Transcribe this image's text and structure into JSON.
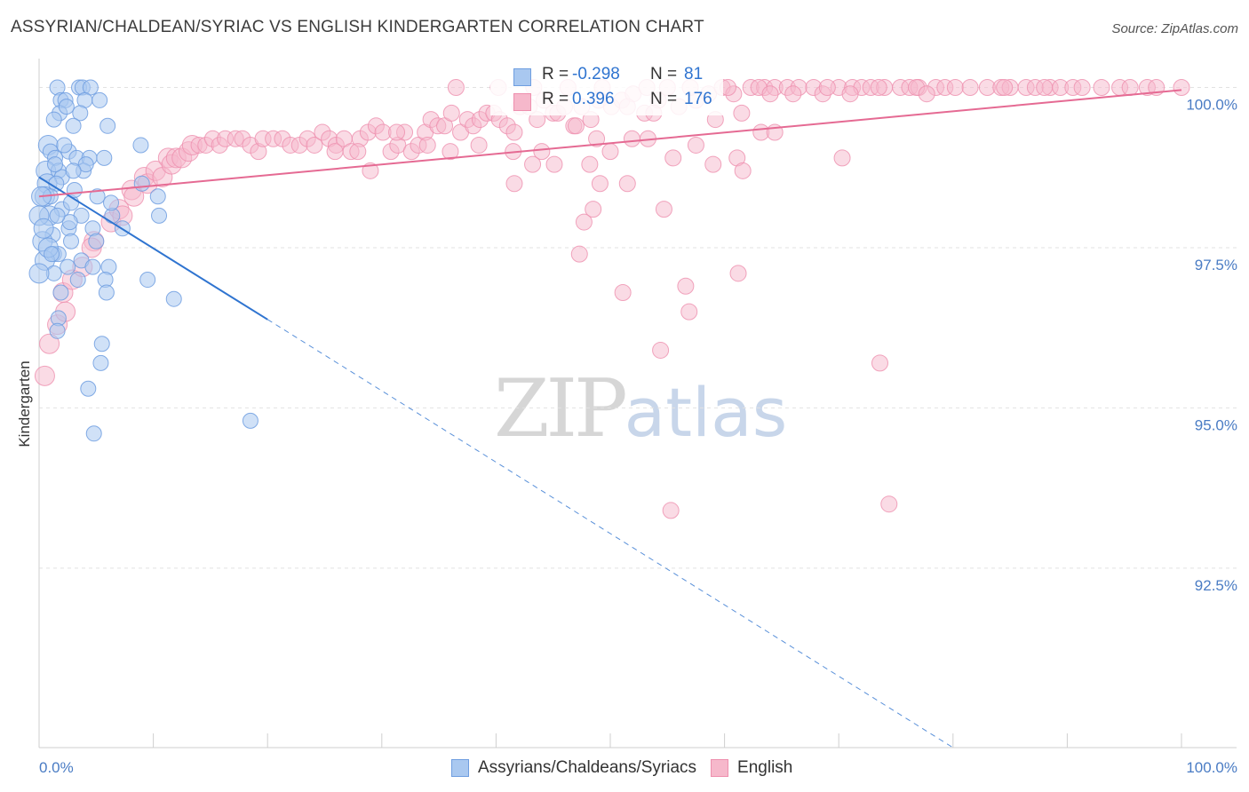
{
  "header": {
    "title": "ASSYRIAN/CHALDEAN/SYRIAC VS ENGLISH KINDERGARTEN CORRELATION CHART",
    "source": "Source: ZipAtlas.com"
  },
  "watermark": {
    "zip": "ZIP",
    "atlas": "atlas"
  },
  "stats": [
    {
      "r_label": "R =",
      "r_value": "-0.298",
      "n_label": "N =",
      "n_value": "81"
    },
    {
      "r_label": "R =",
      "r_value": "0.396",
      "n_label": "N =",
      "n_value": "176"
    }
  ],
  "legend": [
    {
      "label": "Assyrians/Chaldeans/Syriacs"
    },
    {
      "label": "English"
    }
  ],
  "colors": {
    "blue_fill": "#a9c8f0",
    "blue_stroke": "#6f9ee0",
    "blue_line": "#2f74d0",
    "pink_fill": "#f6b8cb",
    "pink_stroke": "#ee8fae",
    "pink_line": "#e56a93",
    "tick_text": "#4a7cc4",
    "grid": "#e2e2e2"
  },
  "chart_data": {
    "type": "scatter",
    "title": "ASSYRIAN/CHALDEAN/SYRIAC VS ENGLISH KINDERGARTEN CORRELATION CHART",
    "xlabel": "",
    "ylabel": "Kindergarten",
    "xlim": [
      0,
      100
    ],
    "ylim": [
      89.7,
      100.45
    ],
    "x_tick_labels": [
      "0.0%",
      "100.0%"
    ],
    "y_ticks": [
      {
        "value": 100.0,
        "label": "100.0%"
      },
      {
        "value": 97.5,
        "label": "97.5%"
      },
      {
        "value": 95.0,
        "label": "95.0%"
      },
      {
        "value": 92.5,
        "label": "92.5%"
      }
    ],
    "series": [
      {
        "name": "Assyrians/Chaldeans/Syriacs",
        "color": "blue",
        "r": -0.298,
        "n": 81,
        "trend": {
          "x0": 0,
          "y0": 98.6,
          "x1": 20,
          "y1": 96.38,
          "dash_to_x": 80,
          "dash_to_y": 89.7
        },
        "points": [
          [
            1.6,
            100.0
          ],
          [
            3.5,
            100.0
          ],
          [
            3.8,
            100.0
          ],
          [
            4.5,
            100.0
          ],
          [
            1.9,
            99.8
          ],
          [
            2.3,
            99.8
          ],
          [
            4.0,
            99.8
          ],
          [
            5.3,
            99.8
          ],
          [
            1.8,
            99.6
          ],
          [
            3.6,
            99.6
          ],
          [
            1.3,
            99.5
          ],
          [
            3.0,
            99.4
          ],
          [
            6.0,
            99.4
          ],
          [
            0.8,
            99.1
          ],
          [
            1.0,
            99.0
          ],
          [
            2.6,
            99.0
          ],
          [
            3.3,
            98.9
          ],
          [
            4.4,
            98.9
          ],
          [
            5.7,
            98.9
          ],
          [
            8.9,
            99.1
          ],
          [
            1.4,
            98.9
          ],
          [
            0.6,
            98.7
          ],
          [
            1.7,
            98.7
          ],
          [
            2.0,
            98.6
          ],
          [
            3.9,
            98.7
          ],
          [
            0.7,
            98.5
          ],
          [
            1.5,
            98.5
          ],
          [
            9.0,
            98.5
          ],
          [
            5.1,
            98.3
          ],
          [
            0.5,
            98.3
          ],
          [
            1.0,
            98.3
          ],
          [
            0.2,
            98.3
          ],
          [
            10.4,
            98.3
          ],
          [
            2.0,
            98.1
          ],
          [
            2.8,
            98.2
          ],
          [
            0.9,
            98.0
          ],
          [
            6.4,
            98.0
          ],
          [
            3.7,
            98.0
          ],
          [
            10.5,
            98.0
          ],
          [
            0.0,
            98.0
          ],
          [
            2.6,
            97.8
          ],
          [
            1.2,
            97.7
          ],
          [
            4.7,
            97.8
          ],
          [
            7.3,
            97.8
          ],
          [
            0.3,
            97.6
          ],
          [
            2.8,
            97.6
          ],
          [
            1.3,
            97.4
          ],
          [
            1.7,
            97.4
          ],
          [
            0.5,
            97.3
          ],
          [
            3.7,
            97.3
          ],
          [
            4.7,
            97.2
          ],
          [
            1.3,
            97.1
          ],
          [
            6.1,
            97.2
          ],
          [
            0.0,
            97.1
          ],
          [
            2.5,
            97.2
          ],
          [
            5.8,
            97.0
          ],
          [
            9.5,
            97.0
          ],
          [
            3.4,
            97.0
          ],
          [
            1.9,
            96.8
          ],
          [
            5.9,
            96.8
          ],
          [
            11.8,
            96.7
          ],
          [
            1.7,
            96.4
          ],
          [
            1.6,
            96.2
          ],
          [
            5.5,
            96.0
          ],
          [
            5.4,
            95.7
          ],
          [
            4.3,
            95.3
          ],
          [
            4.8,
            94.6
          ],
          [
            18.5,
            94.8
          ],
          [
            6.3,
            98.2
          ],
          [
            0.8,
            97.5
          ],
          [
            4.1,
            98.8
          ],
          [
            1.4,
            98.8
          ],
          [
            2.7,
            97.9
          ],
          [
            3.1,
            98.4
          ],
          [
            5.0,
            97.6
          ],
          [
            1.1,
            97.4
          ],
          [
            2.2,
            99.1
          ],
          [
            3.0,
            98.7
          ],
          [
            0.4,
            97.8
          ],
          [
            1.6,
            98.0
          ],
          [
            2.4,
            99.7
          ]
        ]
      },
      {
        "name": "English",
        "color": "pink",
        "r": 0.396,
        "n": 176,
        "trend": {
          "x0": 0,
          "y0": 98.3,
          "x1": 100,
          "y1": 99.96
        },
        "points": [
          [
            0.5,
            95.5
          ],
          [
            0.9,
            96.0
          ],
          [
            1.6,
            96.3
          ],
          [
            2.3,
            96.5
          ],
          [
            2.1,
            96.8
          ],
          [
            2.9,
            97.0
          ],
          [
            3.8,
            97.2
          ],
          [
            4.8,
            97.6
          ],
          [
            4.6,
            97.5
          ],
          [
            6.3,
            97.9
          ],
          [
            7.0,
            98.1
          ],
          [
            7.3,
            98.0
          ],
          [
            8.1,
            98.4
          ],
          [
            8.3,
            98.3
          ],
          [
            9.2,
            98.6
          ],
          [
            9.5,
            98.5
          ],
          [
            10.2,
            98.7
          ],
          [
            10.8,
            98.6
          ],
          [
            11.3,
            98.9
          ],
          [
            11.6,
            98.8
          ],
          [
            12.0,
            98.9
          ],
          [
            12.5,
            98.9
          ],
          [
            13.1,
            99.0
          ],
          [
            13.4,
            99.1
          ],
          [
            14.0,
            99.1
          ],
          [
            14.6,
            99.1
          ],
          [
            15.2,
            99.2
          ],
          [
            15.8,
            99.1
          ],
          [
            16.3,
            99.2
          ],
          [
            17.2,
            99.2
          ],
          [
            17.8,
            99.2
          ],
          [
            18.5,
            99.1
          ],
          [
            19.2,
            99.0
          ],
          [
            19.6,
            99.2
          ],
          [
            20.5,
            99.2
          ],
          [
            21.3,
            99.2
          ],
          [
            22.0,
            99.1
          ],
          [
            22.8,
            99.1
          ],
          [
            23.5,
            99.2
          ],
          [
            24.1,
            99.1
          ],
          [
            24.8,
            99.3
          ],
          [
            25.4,
            99.2
          ],
          [
            26.0,
            99.1
          ],
          [
            26.7,
            99.2
          ],
          [
            27.3,
            99.0
          ],
          [
            28.1,
            99.2
          ],
          [
            28.8,
            99.3
          ],
          [
            29.5,
            99.4
          ],
          [
            30.1,
            99.3
          ],
          [
            30.8,
            99.0
          ],
          [
            31.4,
            99.1
          ],
          [
            32.0,
            99.3
          ],
          [
            32.6,
            99.0
          ],
          [
            33.2,
            99.1
          ],
          [
            33.8,
            99.3
          ],
          [
            34.3,
            99.5
          ],
          [
            34.9,
            99.4
          ],
          [
            35.5,
            99.4
          ],
          [
            36.1,
            99.6
          ],
          [
            36.9,
            99.3
          ],
          [
            37.5,
            99.5
          ],
          [
            38.0,
            99.4
          ],
          [
            38.6,
            99.5
          ],
          [
            39.2,
            99.6
          ],
          [
            39.8,
            99.6
          ],
          [
            40.3,
            99.5
          ],
          [
            41.0,
            99.4
          ],
          [
            41.6,
            99.3
          ],
          [
            42.1,
            99.7
          ],
          [
            42.9,
            99.7
          ],
          [
            43.6,
            99.5
          ],
          [
            44.2,
            99.8
          ],
          [
            45.0,
            99.6
          ],
          [
            45.4,
            99.6
          ],
          [
            46.0,
            99.7
          ],
          [
            46.8,
            99.4
          ],
          [
            47.5,
            99.7
          ],
          [
            48.3,
            99.5
          ],
          [
            49.0,
            99.8
          ],
          [
            50.1,
            99.7
          ],
          [
            51.0,
            99.8
          ],
          [
            52.0,
            99.9
          ],
          [
            53.0,
            99.6
          ],
          [
            54.2,
            99.8
          ],
          [
            55.0,
            100.0
          ],
          [
            56.0,
            99.7
          ],
          [
            57.5,
            99.8
          ],
          [
            58.6,
            99.9
          ],
          [
            59.8,
            100.0
          ],
          [
            60.8,
            99.9
          ],
          [
            61.5,
            99.6
          ],
          [
            62.3,
            100.0
          ],
          [
            63.5,
            100.0
          ],
          [
            64.4,
            100.0
          ],
          [
            65.5,
            100.0
          ],
          [
            66.5,
            100.0
          ],
          [
            67.8,
            100.0
          ],
          [
            68.6,
            99.9
          ],
          [
            70.0,
            100.0
          ],
          [
            71.2,
            100.0
          ],
          [
            72.0,
            100.0
          ],
          [
            72.8,
            100.0
          ],
          [
            74.0,
            100.0
          ],
          [
            75.4,
            100.0
          ],
          [
            76.2,
            100.0
          ],
          [
            77.0,
            100.0
          ],
          [
            78.5,
            100.0
          ],
          [
            79.3,
            100.0
          ],
          [
            80.2,
            100.0
          ],
          [
            81.5,
            100.0
          ],
          [
            83.0,
            100.0
          ],
          [
            84.2,
            100.0
          ],
          [
            85.0,
            100.0
          ],
          [
            86.4,
            100.0
          ],
          [
            87.2,
            100.0
          ],
          [
            88.5,
            100.0
          ],
          [
            89.4,
            100.0
          ],
          [
            90.5,
            100.0
          ],
          [
            91.3,
            100.0
          ],
          [
            93.0,
            100.0
          ],
          [
            94.6,
            100.0
          ],
          [
            95.5,
            100.0
          ],
          [
            97.0,
            100.0
          ],
          [
            97.8,
            100.0
          ],
          [
            100.0,
            100.0
          ],
          [
            47.0,
            99.4
          ],
          [
            48.8,
            99.2
          ],
          [
            51.5,
            99.7
          ],
          [
            53.8,
            99.6
          ],
          [
            50.0,
            99.0
          ],
          [
            44.0,
            99.0
          ],
          [
            43.2,
            98.8
          ],
          [
            41.5,
            99.0
          ],
          [
            38.5,
            99.1
          ],
          [
            36.0,
            99.0
          ],
          [
            34.0,
            99.1
          ],
          [
            31.3,
            99.3
          ],
          [
            29.0,
            98.7
          ],
          [
            27.9,
            99.0
          ],
          [
            25.9,
            99.0
          ],
          [
            36.5,
            100.0
          ],
          [
            40.2,
            100.0
          ],
          [
            43.3,
            100.0
          ],
          [
            46.3,
            100.0
          ],
          [
            49.3,
            100.0
          ],
          [
            53.2,
            100.0
          ],
          [
            57.0,
            100.0
          ],
          [
            60.3,
            100.0
          ],
          [
            63.0,
            100.0
          ],
          [
            64.0,
            99.9
          ],
          [
            66.0,
            99.9
          ],
          [
            69.0,
            100.0
          ],
          [
            71.0,
            99.9
          ],
          [
            73.5,
            100.0
          ],
          [
            76.8,
            100.0
          ],
          [
            77.7,
            99.9
          ],
          [
            84.5,
            100.0
          ],
          [
            88.0,
            100.0
          ],
          [
            63.2,
            99.3
          ],
          [
            64.4,
            99.3
          ],
          [
            70.3,
            98.9
          ],
          [
            61.1,
            98.9
          ],
          [
            59.0,
            98.8
          ],
          [
            61.6,
            98.7
          ],
          [
            55.5,
            98.9
          ],
          [
            57.5,
            99.1
          ],
          [
            53.3,
            99.2
          ],
          [
            51.9,
            99.2
          ],
          [
            48.2,
            98.8
          ],
          [
            45.1,
            98.8
          ],
          [
            41.6,
            98.5
          ],
          [
            49.1,
            98.5
          ],
          [
            51.5,
            98.5
          ],
          [
            48.5,
            98.1
          ],
          [
            54.7,
            98.1
          ],
          [
            47.7,
            97.9
          ],
          [
            47.3,
            97.4
          ],
          [
            51.1,
            96.8
          ],
          [
            56.6,
            96.9
          ],
          [
            61.2,
            97.1
          ],
          [
            56.9,
            96.5
          ],
          [
            54.4,
            95.9
          ],
          [
            73.6,
            95.7
          ],
          [
            55.3,
            93.4
          ],
          [
            74.4,
            93.5
          ],
          [
            59.2,
            99.5
          ]
        ]
      }
    ]
  }
}
